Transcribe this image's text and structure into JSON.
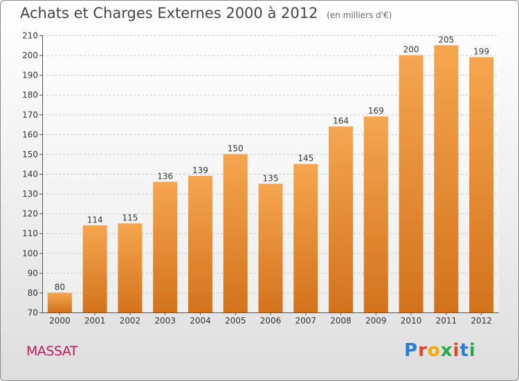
{
  "title": "Achats et Charges Externes 2000 à 2012",
  "subtitle": "(en milliers d'€)",
  "commune": "MASSAT",
  "logo": {
    "text": "Proxiti",
    "letter_colors": [
      "#2a7fd4",
      "#e8412c",
      "#f2a900",
      "#2aa84a",
      "#e8412c",
      "#2a7fd4",
      "#2aa84a"
    ]
  },
  "colors": {
    "bar_top": "#f6a550",
    "bar_bottom": "#d2731c",
    "commune": "#c2185b"
  },
  "chart_data": {
    "type": "bar",
    "categories": [
      "2000",
      "2001",
      "2002",
      "2003",
      "2004",
      "2005",
      "2006",
      "2007",
      "2008",
      "2009",
      "2010",
      "2011",
      "2012"
    ],
    "values": [
      80,
      114,
      115,
      136,
      139,
      150,
      135,
      145,
      164,
      169,
      200,
      205,
      199
    ],
    "ylim": [
      70,
      210
    ],
    "ytick_step": 10,
    "grid": "horizontal dashed",
    "data_labels": true
  }
}
